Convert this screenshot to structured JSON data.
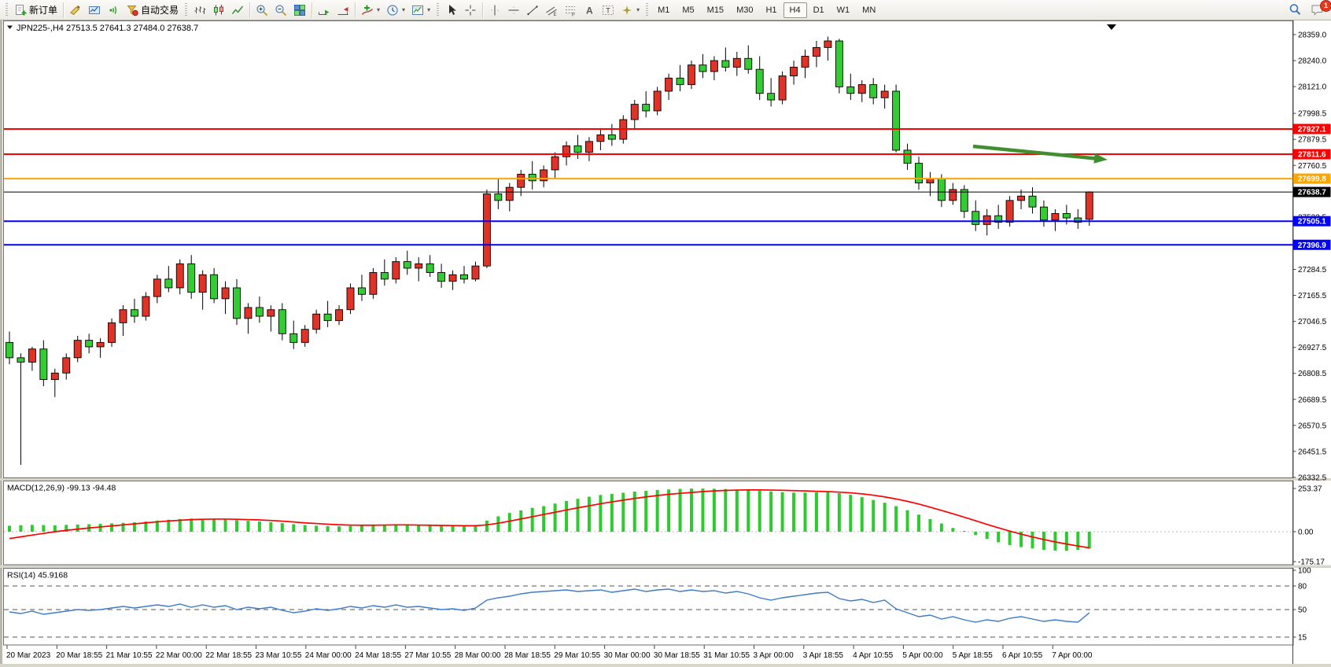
{
  "toolbar": {
    "new_order_label": "新订单",
    "autotrading_label": "自动交易",
    "timeframes": [
      "M1",
      "M5",
      "M15",
      "M30",
      "H1",
      "H4",
      "D1",
      "W1",
      "MN"
    ],
    "active_timeframe": "H4",
    "notification_count": "1"
  },
  "window": {
    "symbol": "JPN225-",
    "period": "H4",
    "ohlc": {
      "open": "27513.5",
      "high": "27641.3",
      "low": "27484.0",
      "close": "27638.7"
    }
  },
  "chart_data": {
    "type": "candlestick",
    "symbol": "JPN225-",
    "timeframe": "H4",
    "title_ohlc": "27513.5 27641.3 27484.0 27638.7",
    "colors": {
      "bull": "#e03226",
      "bear": "#33cc33",
      "wick": "#000000"
    },
    "price_axis_ticks": [
      "28359.0",
      "28240.0",
      "28121.0",
      "27998.5",
      "27879.5",
      "27760.5",
      "27523.5",
      "27284.5",
      "27165.5",
      "27046.5",
      "26927.5",
      "26808.5",
      "26689.5",
      "26570.5",
      "26451.5",
      "26332.5"
    ],
    "price_levels": [
      {
        "label": "27927.1",
        "value": 27927.1,
        "color": "#ff0000",
        "width": 2
      },
      {
        "label": "27811.6",
        "value": 27811.6,
        "color": "#ff0000",
        "width": 2
      },
      {
        "label": "27699.8",
        "value": 27699.8,
        "color": "#ffa500",
        "width": 2
      },
      {
        "label": "27638.7",
        "value": 27638.7,
        "color": "#000000",
        "width": 1
      },
      {
        "label": "27505.1",
        "value": 27505.1,
        "color": "#0000ff",
        "width": 2
      },
      {
        "label": "27396.9",
        "value": 27396.9,
        "color": "#0000ff",
        "width": 2
      }
    ],
    "time_labels": [
      "20 Mar 2023",
      "20 Mar 18:55",
      "21 Mar 10:55",
      "22 Mar 00:00",
      "22 Mar 18:55",
      "23 Mar 10:55",
      "24 Mar 00:00",
      "24 Mar 18:55",
      "27 Mar 10:55",
      "28 Mar 00:00",
      "28 Mar 18:55",
      "29 Mar 10:55",
      "30 Mar 00:00",
      "30 Mar 18:55",
      "31 Mar 10:55",
      "3 Apr 00:00",
      "3 Apr 18:55",
      "4 Apr 10:55",
      "5 Apr 00:00",
      "5 Apr 18:55",
      "6 Apr 10:55",
      "7 Apr 00:00"
    ],
    "candles": [
      [
        26950,
        27000,
        26850,
        26880
      ],
      [
        26880,
        26900,
        26390,
        26860
      ],
      [
        26860,
        26930,
        26820,
        26920
      ],
      [
        26920,
        26960,
        26750,
        26780
      ],
      [
        26780,
        26830,
        26700,
        26810
      ],
      [
        26810,
        26900,
        26780,
        26880
      ],
      [
        26880,
        26980,
        26860,
        26960
      ],
      [
        26960,
        26990,
        26900,
        26930
      ],
      [
        26930,
        26970,
        26880,
        26950
      ],
      [
        26950,
        27060,
        26930,
        27040
      ],
      [
        27040,
        27120,
        26980,
        27100
      ],
      [
        27100,
        27150,
        27040,
        27070
      ],
      [
        27070,
        27180,
        27050,
        27160
      ],
      [
        27160,
        27260,
        27130,
        27240
      ],
      [
        27240,
        27300,
        27180,
        27200
      ],
      [
        27200,
        27330,
        27170,
        27310
      ],
      [
        27310,
        27350,
        27150,
        27180
      ],
      [
        27180,
        27280,
        27100,
        27260
      ],
      [
        27260,
        27290,
        27130,
        27150
      ],
      [
        27150,
        27230,
        27080,
        27200
      ],
      [
        27200,
        27240,
        27030,
        27060
      ],
      [
        27060,
        27130,
        26990,
        27110
      ],
      [
        27110,
        27160,
        27040,
        27070
      ],
      [
        27070,
        27120,
        27000,
        27100
      ],
      [
        27100,
        27130,
        26960,
        26990
      ],
      [
        26990,
        27050,
        26920,
        26950
      ],
      [
        26950,
        27030,
        26930,
        27010
      ],
      [
        27010,
        27100,
        26990,
        27080
      ],
      [
        27080,
        27140,
        27020,
        27050
      ],
      [
        27050,
        27120,
        27030,
        27100
      ],
      [
        27100,
        27220,
        27080,
        27200
      ],
      [
        27200,
        27260,
        27140,
        27170
      ],
      [
        27170,
        27290,
        27150,
        27270
      ],
      [
        27270,
        27330,
        27210,
        27240
      ],
      [
        27240,
        27340,
        27220,
        27320
      ],
      [
        27320,
        27370,
        27260,
        27290
      ],
      [
        27290,
        27340,
        27230,
        27310
      ],
      [
        27310,
        27350,
        27250,
        27270
      ],
      [
        27270,
        27310,
        27200,
        27230
      ],
      [
        27230,
        27280,
        27190,
        27260
      ],
      [
        27260,
        27300,
        27220,
        27240
      ],
      [
        27240,
        27320,
        27230,
        27300
      ],
      [
        27300,
        27650,
        27290,
        27630
      ],
      [
        27630,
        27700,
        27560,
        27600
      ],
      [
        27600,
        27680,
        27550,
        27660
      ],
      [
        27660,
        27740,
        27620,
        27720
      ],
      [
        27720,
        27780,
        27650,
        27690
      ],
      [
        27690,
        27760,
        27660,
        27740
      ],
      [
        27740,
        27820,
        27700,
        27800
      ],
      [
        27800,
        27870,
        27760,
        27850
      ],
      [
        27850,
        27900,
        27790,
        27820
      ],
      [
        27820,
        27890,
        27780,
        27870
      ],
      [
        27870,
        27930,
        27830,
        27900
      ],
      [
        27900,
        27950,
        27850,
        27880
      ],
      [
        27880,
        27990,
        27860,
        27970
      ],
      [
        27970,
        28060,
        27930,
        28040
      ],
      [
        28040,
        28100,
        27980,
        28010
      ],
      [
        28010,
        28120,
        27990,
        28100
      ],
      [
        28100,
        28180,
        28060,
        28160
      ],
      [
        28160,
        28220,
        28100,
        28130
      ],
      [
        28130,
        28240,
        28110,
        28220
      ],
      [
        28220,
        28270,
        28160,
        28190
      ],
      [
        28190,
        28260,
        28150,
        28240
      ],
      [
        28240,
        28300,
        28190,
        28210
      ],
      [
        28210,
        28280,
        28170,
        28250
      ],
      [
        28250,
        28310,
        28180,
        28200
      ],
      [
        28200,
        28260,
        28060,
        28090
      ],
      [
        28090,
        28160,
        28030,
        28060
      ],
      [
        28060,
        28190,
        28040,
        28170
      ],
      [
        28170,
        28240,
        28130,
        28210
      ],
      [
        28210,
        28290,
        28160,
        28260
      ],
      [
        28260,
        28330,
        28210,
        28300
      ],
      [
        28300,
        28350,
        28240,
        28330
      ],
      [
        28330,
        28340,
        28090,
        28120
      ],
      [
        28120,
        28180,
        28060,
        28090
      ],
      [
        28090,
        28150,
        28050,
        28130
      ],
      [
        28130,
        28160,
        28040,
        28070
      ],
      [
        28070,
        28130,
        28020,
        28100
      ],
      [
        28100,
        28130,
        27820,
        27830
      ],
      [
        27830,
        27860,
        27740,
        27770
      ],
      [
        27770,
        27800,
        27650,
        27680
      ],
      [
        27680,
        27730,
        27620,
        27700
      ],
      [
        27700,
        27720,
        27570,
        27600
      ],
      [
        27600,
        27680,
        27580,
        27650
      ],
      [
        27650,
        27670,
        27520,
        27550
      ],
      [
        27550,
        27600,
        27460,
        27490
      ],
      [
        27490,
        27560,
        27440,
        27530
      ],
      [
        27530,
        27580,
        27470,
        27500
      ],
      [
        27500,
        27620,
        27480,
        27600
      ],
      [
        27600,
        27650,
        27560,
        27620
      ],
      [
        27620,
        27660,
        27540,
        27570
      ],
      [
        27570,
        27600,
        27480,
        27510
      ],
      [
        27510,
        27560,
        27460,
        27540
      ],
      [
        27540,
        27580,
        27490,
        27520
      ],
      [
        27520,
        27560,
        27470,
        27500
      ],
      [
        27513.5,
        27641.3,
        27484.0,
        27638.7
      ]
    ],
    "annotation_arrow": {
      "from": [
        1237,
        160
      ],
      "to": [
        1408,
        177
      ],
      "color": "#3f8f2f"
    },
    "macd": {
      "label": "MACD(12,26,9)",
      "value_main": "-99.13",
      "value_signal": "-94.48",
      "axis_ticks": [
        "253.37",
        "0.00",
        "-175.17"
      ],
      "histogram_color": "#2fca2f",
      "signal_color": "#ff0000",
      "histogram": [
        35,
        38,
        40,
        39,
        37,
        40,
        42,
        44,
        46,
        49,
        52,
        55,
        60,
        65,
        70,
        74,
        77,
        75,
        73,
        71,
        68,
        64,
        60,
        56,
        50,
        44,
        39,
        35,
        33,
        32,
        34,
        36,
        39,
        41,
        42,
        40,
        38,
        36,
        34,
        33,
        32,
        35,
        65,
        90,
        110,
        125,
        140,
        150,
        165,
        180,
        193,
        205,
        215,
        222,
        228,
        235,
        240,
        245,
        248,
        251,
        253,
        253,
        252,
        250,
        247,
        244,
        240,
        236,
        232,
        229,
        229,
        231,
        231,
        226,
        216,
        202,
        186,
        170,
        150,
        126,
        100,
        74,
        48,
        22,
        0,
        -20,
        -42,
        -62,
        -78,
        -90,
        -98,
        -106,
        -111,
        -112,
        -106,
        -99.1
      ],
      "signal": [
        -40,
        -30,
        -20,
        -10,
        0,
        8,
        15,
        22,
        28,
        34,
        40,
        46,
        52,
        58,
        63,
        67,
        71,
        73,
        74,
        74,
        73,
        71,
        69,
        66,
        62,
        57,
        52,
        48,
        44,
        41,
        39,
        38,
        38,
        39,
        40,
        40,
        39,
        38,
        37,
        36,
        35,
        35,
        40,
        50,
        62,
        75,
        88,
        101,
        114,
        127,
        140,
        152,
        164,
        175,
        185,
        195,
        204,
        212,
        219,
        225,
        230,
        235,
        239,
        242,
        244,
        245,
        245,
        244,
        243,
        241,
        239,
        237,
        235,
        232,
        228,
        222,
        214,
        204,
        192,
        178,
        162,
        144,
        125,
        105,
        85,
        64,
        43,
        23,
        4,
        -14,
        -31,
        -46,
        -60,
        -72,
        -84,
        -94.5
      ]
    },
    "rsi": {
      "label": "RSI(14)",
      "value": "45.9168",
      "axis_ticks": [
        "100",
        "80",
        "50",
        "15"
      ],
      "levels": [
        80,
        50,
        15
      ],
      "line_color": "#3e7bc9",
      "series": [
        47,
        45,
        48,
        44,
        46,
        48,
        50,
        49,
        50,
        52,
        54,
        52,
        54,
        56,
        54,
        57,
        53,
        56,
        53,
        55,
        50,
        53,
        51,
        53,
        49,
        46,
        48,
        51,
        49,
        51,
        54,
        52,
        55,
        53,
        56,
        53,
        54,
        52,
        50,
        51,
        49,
        52,
        62,
        65,
        67,
        70,
        72,
        73,
        74,
        75,
        73,
        74,
        75,
        72,
        74,
        76,
        73,
        75,
        76,
        73,
        75,
        73,
        74,
        71,
        73,
        70,
        65,
        62,
        65,
        67,
        69,
        71,
        72,
        64,
        61,
        63,
        59,
        62,
        51,
        46,
        41,
        43,
        38,
        41,
        37,
        34,
        37,
        35,
        39,
        41,
        38,
        35,
        37,
        35,
        34,
        45.9
      ]
    }
  }
}
